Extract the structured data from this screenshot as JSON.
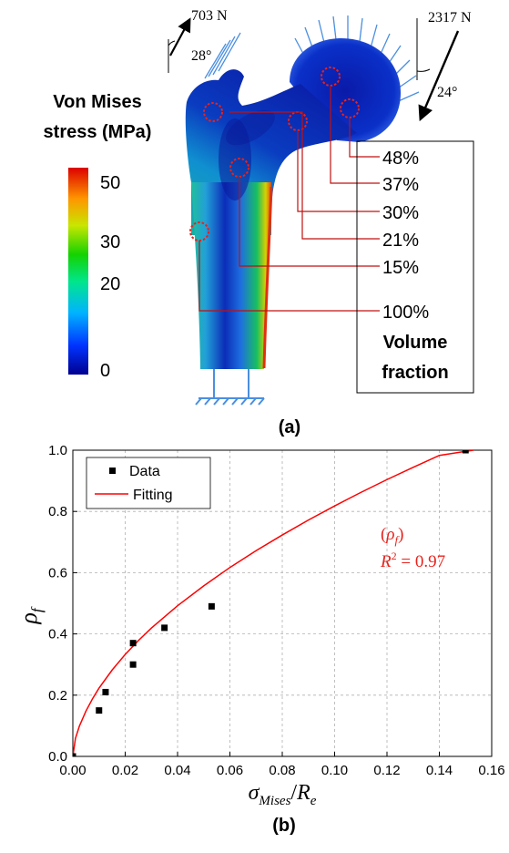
{
  "panel_a": {
    "caption": "(a)",
    "colorbar": {
      "title_line1": "Von Mises",
      "title_line2": "stress (MPa)",
      "ticks": [
        "50",
        "30",
        "20",
        "0"
      ]
    },
    "loads": {
      "left_force": "703 N",
      "left_angle": "28°",
      "right_force": "2317 N",
      "right_angle": "24°"
    },
    "fractions": [
      "48%",
      "37%",
      "30%",
      "21%",
      "15%",
      "100%"
    ],
    "fraction_title_line1": "Volume",
    "fraction_title_line2": "fraction"
  },
  "panel_b": {
    "caption": "(b)",
    "chart_data": {
      "type": "scatter",
      "xlabel": "σMises/Re",
      "ylabel": "ρf",
      "xlim": [
        0,
        0.16
      ],
      "ylim": [
        0,
        1.0
      ],
      "xticks": [
        "0.00",
        "0.02",
        "0.04",
        "0.06",
        "0.08",
        "0.10",
        "0.12",
        "0.14",
        "0.16"
      ],
      "yticks": [
        "0.0",
        "0.2",
        "0.4",
        "0.6",
        "0.8",
        "1.0"
      ],
      "grid": true,
      "legend_position": "top-left",
      "series": [
        {
          "name": "Data",
          "kind": "markers",
          "color": "#000000",
          "x": [
            0.0,
            0.01,
            0.0125,
            0.023,
            0.023,
            0.035,
            0.053,
            0.15
          ],
          "y": [
            0.0,
            0.15,
            0.21,
            0.3,
            0.37,
            0.42,
            0.49,
            1.0
          ]
        },
        {
          "name": "Fitting",
          "kind": "line",
          "color": "#ff0000",
          "x": [
            0.0,
            0.001,
            0.0025,
            0.005,
            0.0075,
            0.01,
            0.015,
            0.02,
            0.025,
            0.03,
            0.04,
            0.05,
            0.06,
            0.07,
            0.08,
            0.09,
            0.1,
            0.11,
            0.12,
            0.13,
            0.14,
            0.153
          ],
          "y": [
            0.0,
            0.059,
            0.099,
            0.148,
            0.188,
            0.223,
            0.282,
            0.333,
            0.378,
            0.419,
            0.492,
            0.557,
            0.617,
            0.672,
            0.723,
            0.772,
            0.818,
            0.862,
            0.904,
            0.944,
            0.983,
            1.0
          ]
        }
      ],
      "annotation_rho": "(ρf)",
      "annotation_r2": "R2 = 0.97"
    }
  }
}
